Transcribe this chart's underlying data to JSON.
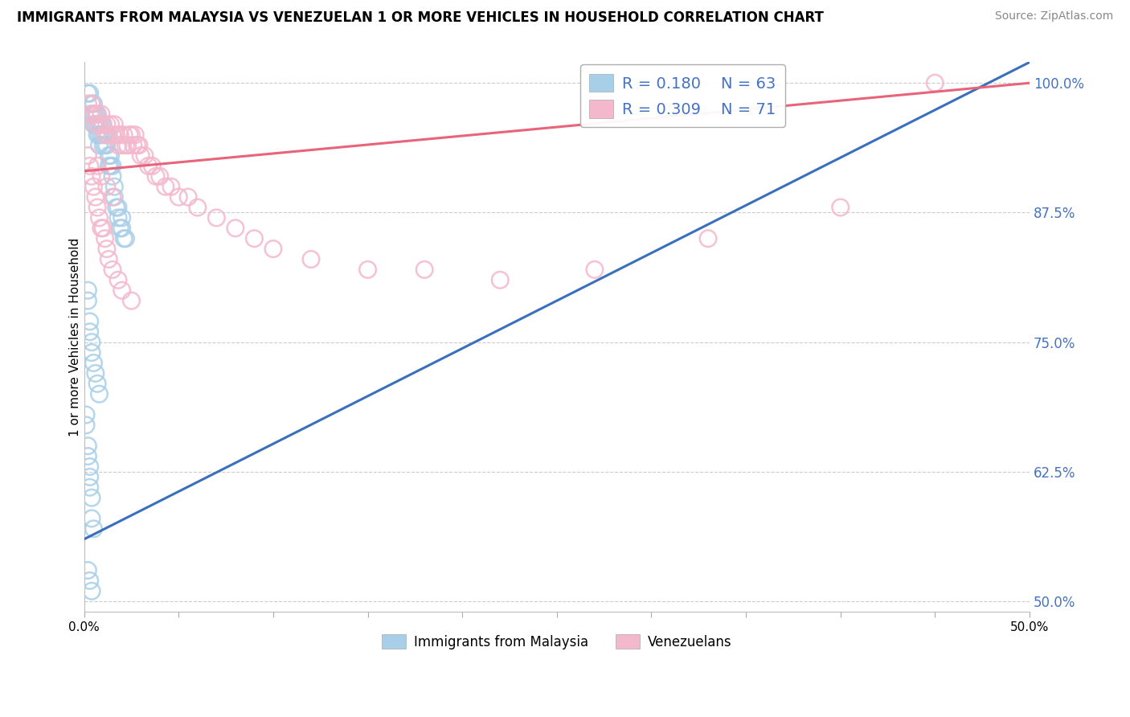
{
  "title": "IMMIGRANTS FROM MALAYSIA VS VENEZUELAN 1 OR MORE VEHICLES IN HOUSEHOLD CORRELATION CHART",
  "source": "Source: ZipAtlas.com",
  "ylabel": "1 or more Vehicles in Household",
  "legend_label1": "Immigrants from Malaysia",
  "legend_label2": "Venezuelans",
  "r1": "0.180",
  "n1": "63",
  "r2": "0.309",
  "n2": "71",
  "color_blue": "#a8cfe8",
  "color_pink": "#f4b8cc",
  "line_blue": "#3a6fbe",
  "line_pink": "#e8647a",
  "xmin": 0.0,
  "xmax": 0.5,
  "ymin": 0.49,
  "ymax": 1.02,
  "malaysia_x": [
    0.002,
    0.003,
    0.004,
    0.004,
    0.005,
    0.005,
    0.005,
    0.006,
    0.006,
    0.007,
    0.007,
    0.007,
    0.008,
    0.008,
    0.008,
    0.009,
    0.009,
    0.01,
    0.01,
    0.01,
    0.011,
    0.011,
    0.012,
    0.012,
    0.013,
    0.013,
    0.014,
    0.014,
    0.015,
    0.015,
    0.016,
    0.016,
    0.017,
    0.018,
    0.018,
    0.019,
    0.02,
    0.02,
    0.021,
    0.022,
    0.002,
    0.002,
    0.003,
    0.003,
    0.004,
    0.004,
    0.005,
    0.006,
    0.007,
    0.008,
    0.001,
    0.001,
    0.002,
    0.002,
    0.003,
    0.003,
    0.003,
    0.004,
    0.004,
    0.005,
    0.002,
    0.003,
    0.004
  ],
  "malaysia_y": [
    0.99,
    0.99,
    0.98,
    0.97,
    0.98,
    0.97,
    0.96,
    0.97,
    0.96,
    0.97,
    0.96,
    0.95,
    0.96,
    0.95,
    0.94,
    0.96,
    0.95,
    0.96,
    0.95,
    0.94,
    0.95,
    0.94,
    0.95,
    0.94,
    0.93,
    0.92,
    0.93,
    0.92,
    0.92,
    0.91,
    0.9,
    0.89,
    0.88,
    0.88,
    0.87,
    0.86,
    0.87,
    0.86,
    0.85,
    0.85,
    0.8,
    0.79,
    0.77,
    0.76,
    0.75,
    0.74,
    0.73,
    0.72,
    0.71,
    0.7,
    0.68,
    0.67,
    0.65,
    0.64,
    0.63,
    0.62,
    0.61,
    0.6,
    0.58,
    0.57,
    0.53,
    0.52,
    0.51
  ],
  "venezuela_x": [
    0.002,
    0.003,
    0.004,
    0.005,
    0.006,
    0.007,
    0.008,
    0.009,
    0.01,
    0.011,
    0.012,
    0.013,
    0.014,
    0.015,
    0.016,
    0.017,
    0.018,
    0.019,
    0.02,
    0.021,
    0.022,
    0.023,
    0.024,
    0.025,
    0.026,
    0.027,
    0.028,
    0.029,
    0.03,
    0.032,
    0.034,
    0.036,
    0.038,
    0.04,
    0.043,
    0.046,
    0.05,
    0.055,
    0.06,
    0.07,
    0.08,
    0.09,
    0.1,
    0.12,
    0.15,
    0.18,
    0.22,
    0.27,
    0.33,
    0.4,
    0.002,
    0.003,
    0.004,
    0.005,
    0.006,
    0.007,
    0.008,
    0.009,
    0.01,
    0.011,
    0.012,
    0.013,
    0.015,
    0.018,
    0.02,
    0.025,
    0.007,
    0.009,
    0.012,
    0.015,
    0.45
  ],
  "venezuela_y": [
    0.98,
    0.97,
    0.98,
    0.97,
    0.96,
    0.97,
    0.96,
    0.97,
    0.96,
    0.95,
    0.96,
    0.95,
    0.96,
    0.95,
    0.96,
    0.95,
    0.94,
    0.95,
    0.94,
    0.95,
    0.94,
    0.94,
    0.95,
    0.95,
    0.94,
    0.95,
    0.94,
    0.94,
    0.93,
    0.93,
    0.92,
    0.92,
    0.91,
    0.91,
    0.9,
    0.9,
    0.89,
    0.89,
    0.88,
    0.87,
    0.86,
    0.85,
    0.84,
    0.83,
    0.82,
    0.82,
    0.81,
    0.82,
    0.85,
    0.88,
    0.93,
    0.92,
    0.91,
    0.9,
    0.89,
    0.88,
    0.87,
    0.86,
    0.86,
    0.85,
    0.84,
    0.83,
    0.82,
    0.81,
    0.8,
    0.79,
    0.92,
    0.91,
    0.9,
    0.89,
    1.0
  ],
  "blue_trend_x": [
    0.0,
    0.5
  ],
  "blue_trend_y": [
    0.56,
    1.02
  ],
  "pink_trend_x": [
    0.0,
    0.5
  ],
  "pink_trend_y": [
    0.915,
    1.0
  ]
}
